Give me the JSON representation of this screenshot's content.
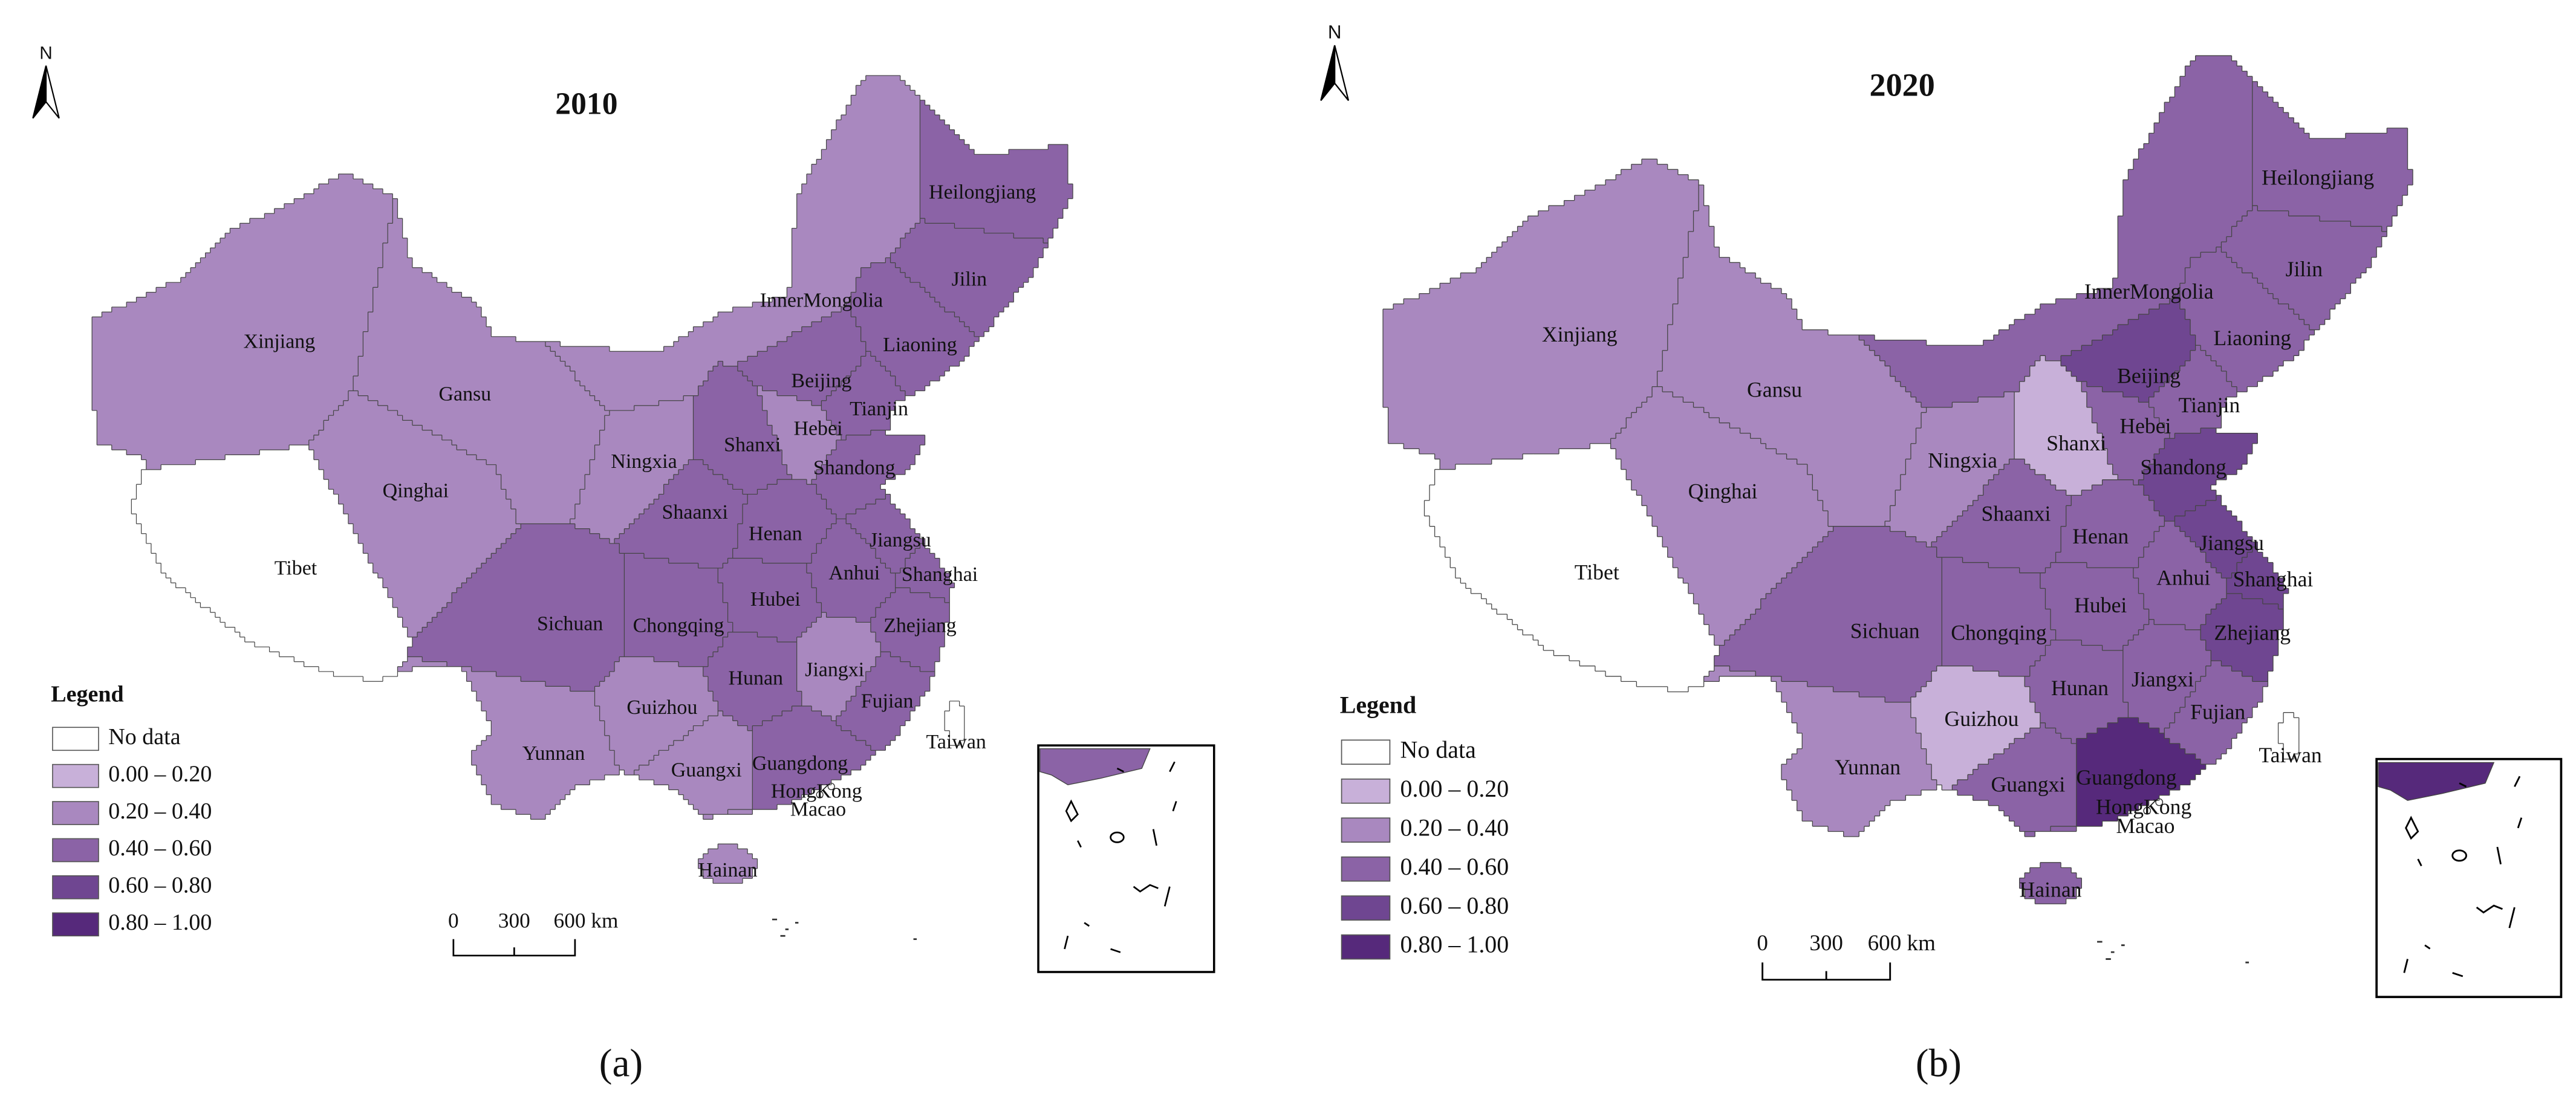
{
  "panels": [
    {
      "title": "2010",
      "caption": "(a)",
      "north": "N",
      "legend": {
        "title": "Legend",
        "items": [
          {
            "label": "No data",
            "color": "#ffffff"
          },
          {
            "label": "0.00 – 0.20",
            "color": "#c8b0d9"
          },
          {
            "label": "0.20 – 0.40",
            "color": "#a988bf"
          },
          {
            "label": "0.40 – 0.60",
            "color": "#8b63a6"
          },
          {
            "label": "0.60 – 0.80",
            "color": "#6f4691"
          },
          {
            "label": "0.80 – 1.00",
            "color": "#56297b"
          }
        ]
      },
      "scale": [
        "0",
        "300",
        "600 km"
      ],
      "provinces": [
        {
          "name": "Xinjiang",
          "color": "#a988bf"
        },
        {
          "name": "Tibet",
          "color": "#ffffff"
        },
        {
          "name": "Qinghai",
          "color": "#a988bf"
        },
        {
          "name": "Gansu",
          "color": "#a988bf"
        },
        {
          "name": "InnerMongolia",
          "color": "#a988bf"
        },
        {
          "name": "Heilongjiang",
          "color": "#8b63a6"
        },
        {
          "name": "Jilin",
          "color": "#8b63a6"
        },
        {
          "name": "Liaoning",
          "color": "#8b63a6"
        },
        {
          "name": "Beijing",
          "color": "#8b63a6"
        },
        {
          "name": "Tianjin",
          "color": "#8b63a6"
        },
        {
          "name": "Hebei",
          "color": "#a988bf"
        },
        {
          "name": "Shanxi",
          "color": "#8b63a6"
        },
        {
          "name": "Shandong",
          "color": "#8b63a6"
        },
        {
          "name": "Ningxia",
          "color": "#a988bf"
        },
        {
          "name": "Shaanxi",
          "color": "#8b63a6"
        },
        {
          "name": "Henan",
          "color": "#8b63a6"
        },
        {
          "name": "Jiangsu",
          "color": "#8b63a6"
        },
        {
          "name": "Anhui",
          "color": "#8b63a6"
        },
        {
          "name": "Shanghai",
          "color": "#8b63a6"
        },
        {
          "name": "Hubei",
          "color": "#8b63a6"
        },
        {
          "name": "Sichuan",
          "color": "#8b63a6"
        },
        {
          "name": "Chongqing",
          "color": "#8b63a6"
        },
        {
          "name": "Zhejiang",
          "color": "#8b63a6"
        },
        {
          "name": "Hunan",
          "color": "#8b63a6"
        },
        {
          "name": "Jiangxi",
          "color": "#a988bf"
        },
        {
          "name": "Guizhou",
          "color": "#a988bf"
        },
        {
          "name": "Fujian",
          "color": "#8b63a6"
        },
        {
          "name": "Yunnan",
          "color": "#a988bf"
        },
        {
          "name": "Guangxi",
          "color": "#a988bf"
        },
        {
          "name": "Guangdong",
          "color": "#8b63a6"
        },
        {
          "name": "HongKong",
          "color": "#ffffff"
        },
        {
          "name": "Macao",
          "color": "#ffffff"
        },
        {
          "name": "Hainan",
          "color": "#a988bf"
        },
        {
          "name": "Taiwan",
          "color": "#ffffff"
        }
      ]
    },
    {
      "title": "2020",
      "caption": "(b)",
      "north": "N",
      "legend": {
        "title": "Legend",
        "items": [
          {
            "label": "No data",
            "color": "#ffffff"
          },
          {
            "label": "0.00 – 0.20",
            "color": "#c8b0d9"
          },
          {
            "label": "0.20 – 0.40",
            "color": "#a988bf"
          },
          {
            "label": "0.40 – 0.60",
            "color": "#8b63a6"
          },
          {
            "label": "0.60 – 0.80",
            "color": "#6f4691"
          },
          {
            "label": "0.80 – 1.00",
            "color": "#56297b"
          }
        ]
      },
      "scale": [
        "0",
        "300",
        "600 km"
      ],
      "provinces": [
        {
          "name": "Xinjiang",
          "color": "#a988bf"
        },
        {
          "name": "Tibet",
          "color": "#ffffff"
        },
        {
          "name": "Qinghai",
          "color": "#a988bf"
        },
        {
          "name": "Gansu",
          "color": "#a988bf"
        },
        {
          "name": "InnerMongolia",
          "color": "#8b63a6"
        },
        {
          "name": "Heilongjiang",
          "color": "#8b63a6"
        },
        {
          "name": "Jilin",
          "color": "#8b63a6"
        },
        {
          "name": "Liaoning",
          "color": "#8b63a6"
        },
        {
          "name": "Beijing",
          "color": "#6f4691"
        },
        {
          "name": "Tianjin",
          "color": "#8b63a6"
        },
        {
          "name": "Hebei",
          "color": "#8b63a6"
        },
        {
          "name": "Shanxi",
          "color": "#c8b0d9"
        },
        {
          "name": "Shandong",
          "color": "#6f4691"
        },
        {
          "name": "Ningxia",
          "color": "#a988bf"
        },
        {
          "name": "Shaanxi",
          "color": "#8b63a6"
        },
        {
          "name": "Henan",
          "color": "#8b63a6"
        },
        {
          "name": "Jiangsu",
          "color": "#6f4691"
        },
        {
          "name": "Anhui",
          "color": "#8b63a6"
        },
        {
          "name": "Shanghai",
          "color": "#6f4691"
        },
        {
          "name": "Hubei",
          "color": "#8b63a6"
        },
        {
          "name": "Sichuan",
          "color": "#8b63a6"
        },
        {
          "name": "Chongqing",
          "color": "#8b63a6"
        },
        {
          "name": "Zhejiang",
          "color": "#6f4691"
        },
        {
          "name": "Hunan",
          "color": "#8b63a6"
        },
        {
          "name": "Jiangxi",
          "color": "#8b63a6"
        },
        {
          "name": "Guizhou",
          "color": "#c8b0d9"
        },
        {
          "name": "Fujian",
          "color": "#8b63a6"
        },
        {
          "name": "Yunnan",
          "color": "#a988bf"
        },
        {
          "name": "Guangxi",
          "color": "#8b63a6"
        },
        {
          "name": "Guangdong",
          "color": "#56297b"
        },
        {
          "name": "HongKong",
          "color": "#ffffff"
        },
        {
          "name": "Macao",
          "color": "#ffffff"
        },
        {
          "name": "Hainan",
          "color": "#8b63a6"
        },
        {
          "name": "Taiwan",
          "color": "#ffffff"
        }
      ]
    }
  ]
}
